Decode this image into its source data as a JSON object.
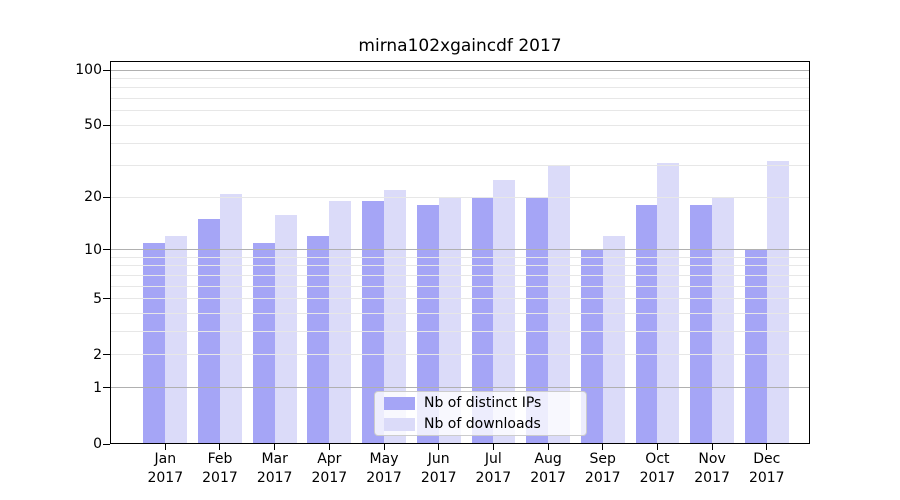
{
  "chart_data": {
    "type": "bar",
    "title": "mirna102xgaincdf 2017",
    "categories": [
      "Jan 2017",
      "Feb 2017",
      "Mar 2017",
      "Apr 2017",
      "May 2017",
      "Jun 2017",
      "Jul 2017",
      "Aug 2017",
      "Sep 2017",
      "Oct 2017",
      "Nov 2017",
      "Dec 2017"
    ],
    "series": [
      {
        "key": "ips",
        "name": "Nb of distinct IPs",
        "color": "#a5a5f6",
        "values": [
          11,
          15,
          11,
          12,
          19,
          18,
          20,
          20,
          10,
          18,
          18,
          10
        ]
      },
      {
        "key": "downloads",
        "name": "Nb of downloads",
        "color": "#dbdbf9",
        "values": [
          12,
          21,
          16,
          19,
          22,
          20,
          25,
          30,
          12,
          31,
          20,
          32
        ]
      }
    ],
    "xlabel": "",
    "ylabel": "",
    "y_scale": "log10(value+1)",
    "ylim": [
      0,
      112
    ],
    "y_ticks": [
      0,
      1,
      2,
      5,
      10,
      20,
      50,
      100
    ],
    "y_major_gridlines": [
      1,
      10,
      100
    ],
    "y_minor_gridlines": [
      2,
      3,
      4,
      5,
      6,
      7,
      8,
      9,
      20,
      30,
      40,
      50,
      60,
      70,
      80,
      90
    ],
    "grid": true,
    "legend_position": "lower center",
    "colors": {
      "major_grid": "#b0b0b0",
      "minor_grid": "#e7e7e7",
      "axis": "#000000",
      "text": "#000000",
      "legend_border": "#cccccc",
      "background": "#ffffff"
    }
  }
}
